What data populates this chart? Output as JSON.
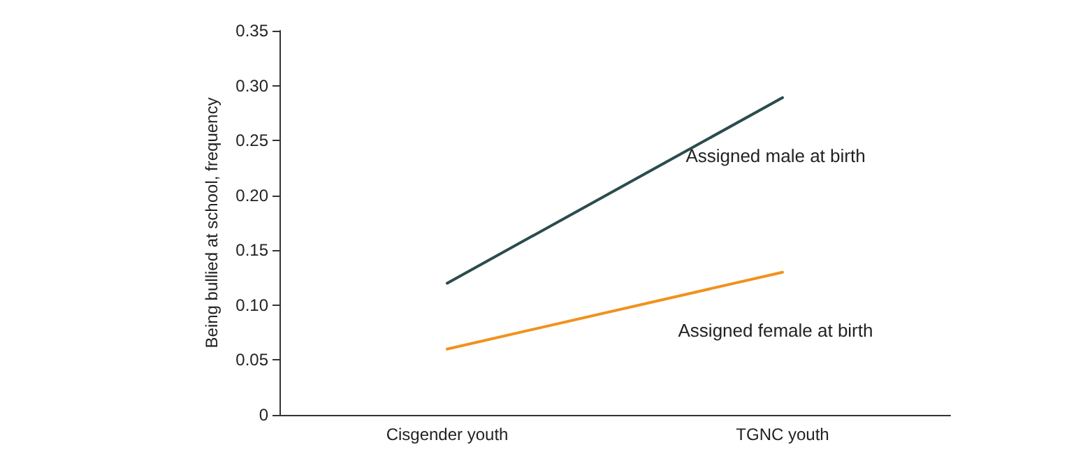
{
  "chart_data": {
    "type": "line",
    "ylabel": "Being bullied at school, frequency",
    "categories": [
      "Cisgender youth",
      "TGNC youth"
    ],
    "series": [
      {
        "name": "Assigned male at birth",
        "color": "#2b4c4c",
        "values": [
          0.12,
          0.289
        ]
      },
      {
        "name": "Assigned female at birth",
        "color": "#f0921e",
        "values": [
          0.06,
          0.13
        ]
      }
    ],
    "ylim": [
      0,
      0.35
    ],
    "yticks": [
      0,
      {
        "value": 0.05,
        "label": "0.05"
      },
      {
        "value": 0.1,
        "label": "0.10"
      },
      {
        "value": 0.15,
        "label": "0.15"
      },
      {
        "value": 0.2,
        "label": "0.20"
      },
      {
        "value": 0.25,
        "label": "0.25"
      },
      {
        "value": 0.3,
        "label": "0.30"
      },
      {
        "value": 0.35,
        "label": "0.35"
      }
    ],
    "grid": false,
    "legend": false,
    "marker": "none",
    "line_style": "solid"
  }
}
